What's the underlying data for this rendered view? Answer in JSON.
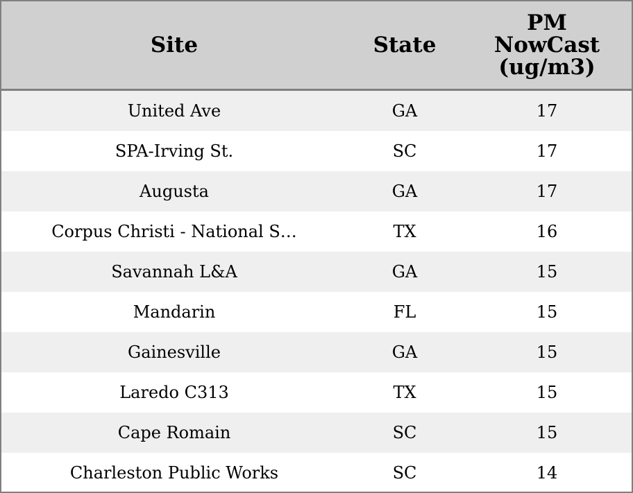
{
  "table": {
    "header": [
      "Site",
      "State",
      "PM NowCast (ug/m3)"
    ],
    "rows": [
      [
        "United Ave",
        "GA",
        17
      ],
      [
        "SPA-Irving St.",
        "SC",
        17
      ],
      [
        "Augusta",
        "GA",
        17
      ],
      [
        "Corpus Christi - National S…",
        "TX",
        16
      ],
      [
        "Savannah L&A",
        "GA",
        15
      ],
      [
        "Mandarin",
        "FL",
        15
      ],
      [
        "Gainesville",
        "GA",
        15
      ],
      [
        "Laredo C313",
        "TX",
        15
      ],
      [
        "Cape Romain",
        "SC",
        15
      ],
      [
        "Charleston Public Works",
        "SC",
        14
      ]
    ]
  }
}
